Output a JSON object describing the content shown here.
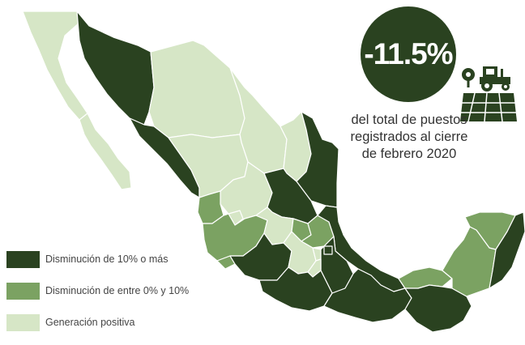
{
  "kpi": {
    "value": "-11.5%",
    "description": "del total de puestos registrados al cierre de febrero 2020",
    "icon": "tractor-field-icon"
  },
  "legend": [
    {
      "label": "Disminución de 10% o más",
      "color": "#2a4220"
    },
    {
      "label": "Disminución de entre 0% y 10%",
      "color": "#7ba262"
    },
    {
      "label": "Generación positiva",
      "color": "#d6e6c6"
    }
  ],
  "map": {
    "region": "Mexico",
    "states": [
      {
        "name": "Baja California",
        "category": "light"
      },
      {
        "name": "Baja California Sur",
        "category": "light"
      },
      {
        "name": "Sonora",
        "category": "dark"
      },
      {
        "name": "Chihuahua",
        "category": "light"
      },
      {
        "name": "Coahuila",
        "category": "light"
      },
      {
        "name": "Nuevo León",
        "category": "light"
      },
      {
        "name": "Tamaulipas",
        "category": "dark"
      },
      {
        "name": "Sinaloa",
        "category": "dark"
      },
      {
        "name": "Durango",
        "category": "light"
      },
      {
        "name": "Zacatecas",
        "category": "light"
      },
      {
        "name": "San Luis Potosí",
        "category": "dark"
      },
      {
        "name": "Nayarit",
        "category": "mid"
      },
      {
        "name": "Aguascalientes",
        "category": "light"
      },
      {
        "name": "Jalisco",
        "category": "mid"
      },
      {
        "name": "Guanajuato",
        "category": "light"
      },
      {
        "name": "Querétaro",
        "category": "mid"
      },
      {
        "name": "Hidalgo",
        "category": "mid"
      },
      {
        "name": "Veracruz",
        "category": "dark"
      },
      {
        "name": "Colima",
        "category": "mid"
      },
      {
        "name": "Michoacán",
        "category": "dark"
      },
      {
        "name": "Estado de México",
        "category": "light"
      },
      {
        "name": "Ciudad de México",
        "category": "light"
      },
      {
        "name": "Tlaxcala",
        "category": "light"
      },
      {
        "name": "Puebla",
        "category": "dark"
      },
      {
        "name": "Morelos",
        "category": "light"
      },
      {
        "name": "Guerrero",
        "category": "dark"
      },
      {
        "name": "Oaxaca",
        "category": "dark"
      },
      {
        "name": "Tabasco",
        "category": "mid"
      },
      {
        "name": "Chiapas",
        "category": "dark"
      },
      {
        "name": "Campeche",
        "category": "mid"
      },
      {
        "name": "Yucatán",
        "category": "mid"
      },
      {
        "name": "Quintana Roo",
        "category": "dark"
      }
    ]
  }
}
